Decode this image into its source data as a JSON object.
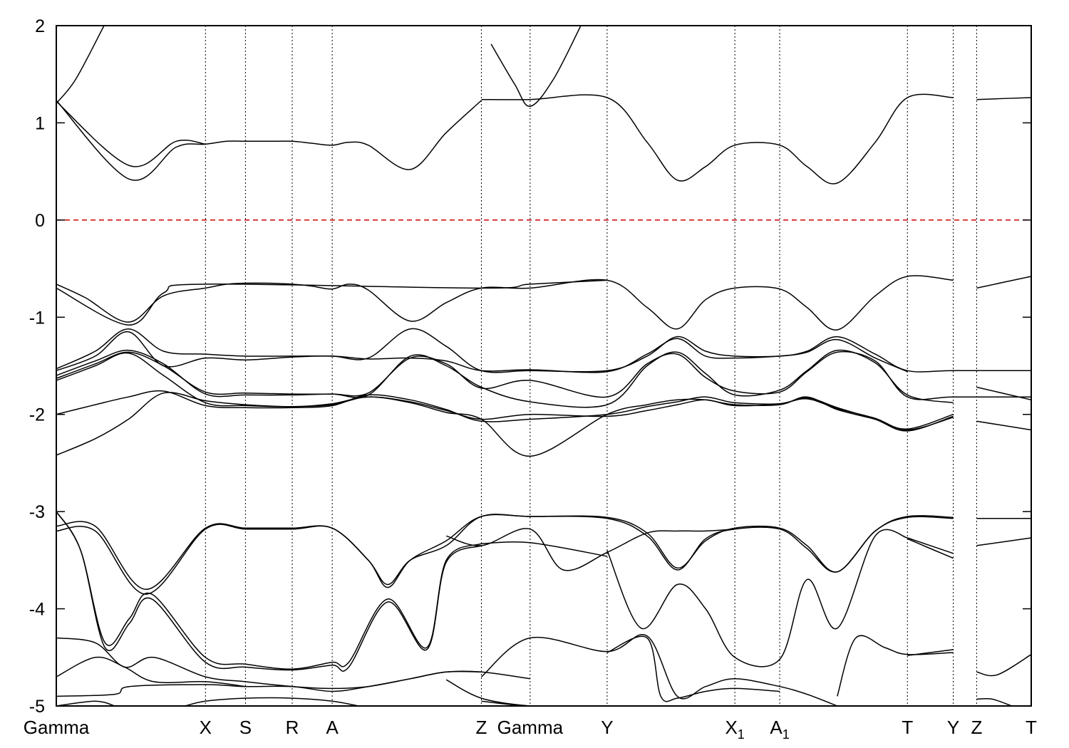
{
  "chart_data": {
    "type": "line",
    "title": "",
    "xlabel": "",
    "ylabel": "",
    "xlim": [
      0,
      1000
    ],
    "ylim": [
      -5,
      2
    ],
    "y_ticks": [
      "2",
      "1",
      "0",
      "-1",
      "-2",
      "-3",
      "-4",
      "-5"
    ],
    "grid": false,
    "fermi_level": {
      "y": 0,
      "color": "#d00000",
      "style": "dashed"
    },
    "kpoints": [
      {
        "label": "Gamma",
        "sub": "",
        "x": 0,
        "ha": "middle"
      },
      {
        "label": "X",
        "sub": "",
        "x": 153,
        "ha": "middle"
      },
      {
        "label": "S",
        "sub": "",
        "x": 194,
        "ha": "middle"
      },
      {
        "label": "R",
        "sub": "",
        "x": 242,
        "ha": "middle"
      },
      {
        "label": "A",
        "sub": "",
        "x": 283,
        "ha": "middle"
      },
      {
        "label": "Z",
        "sub": "",
        "x": 436,
        "ha": "end"
      },
      {
        "label": "Gamma",
        "sub": "",
        "x": 486,
        "ha": "middle"
      },
      {
        "label": "Y",
        "sub": "",
        "x": 565,
        "ha": "middle"
      },
      {
        "label": "X",
        "sub": "1",
        "x": 696,
        "ha": "middle"
      },
      {
        "label": "A",
        "sub": "1",
        "x": 742,
        "ha": "middle"
      },
      {
        "label": "T",
        "sub": "",
        "x": 873,
        "ha": "middle"
      },
      {
        "label": "Y",
        "sub": "",
        "x": 920,
        "ha": "middle"
      },
      {
        "label": "Z",
        "sub": "",
        "x": 944,
        "ha": "middle"
      },
      {
        "label": "T",
        "sub": "",
        "x": 1000,
        "ha": "middle"
      }
    ],
    "series": [
      {
        "x": [
          0,
          20,
          49
        ],
        "y": [
          1.2,
          1.45,
          2.0
        ]
      },
      {
        "x": [
          0,
          75,
          123,
          153,
          175,
          194,
          218,
          242,
          262,
          283,
          300,
          320,
          363,
          400,
          436
        ],
        "y": [
          1.23,
          0.42,
          0.75,
          0.78,
          0.81,
          0.81,
          0.81,
          0.81,
          0.79,
          0.77,
          0.8,
          0.77,
          0.52,
          0.9,
          1.23
        ]
      },
      {
        "x": [
          0,
          75,
          123,
          153
        ],
        "y": [
          1.22,
          0.56,
          0.81,
          0.78
        ]
      },
      {
        "x": [
          436,
          486,
          565,
          606,
          637,
          666,
          696,
          742,
          770,
          801,
          840,
          873,
          920
        ],
        "y": [
          1.24,
          1.24,
          1.26,
          0.8,
          0.41,
          0.55,
          0.77,
          0.77,
          0.55,
          0.38,
          0.8,
          1.26,
          1.26
        ]
      },
      {
        "x": [
          944,
          1000
        ],
        "y": [
          1.24,
          1.26
        ]
      },
      {
        "x": [
          446,
          470,
          486,
          510,
          538
        ],
        "y": [
          1.81,
          1.4,
          1.17,
          1.45,
          2.0
        ]
      },
      {
        "x": [
          0,
          30,
          74,
          110,
          153,
          175,
          194,
          218,
          242,
          262,
          283,
          300,
          320,
          363,
          400,
          436,
          486,
          565,
          606,
          637,
          666,
          696,
          742,
          770,
          801,
          840,
          873,
          920
        ],
        "y": [
          -0.66,
          -0.8,
          -1.05,
          -0.78,
          -0.7,
          -0.66,
          -0.65,
          -0.65,
          -0.66,
          -0.68,
          -0.71,
          -0.66,
          -0.72,
          -1.04,
          -0.85,
          -0.7,
          -0.7,
          -0.62,
          -0.9,
          -1.12,
          -0.82,
          -0.7,
          -0.71,
          -0.9,
          -1.13,
          -0.78,
          -0.58,
          -0.62
        ]
      },
      {
        "x": [
          0,
          74,
          110,
          153,
          436,
          486,
          565
        ],
        "y": [
          -0.7,
          -1.08,
          -0.75,
          -0.66,
          -0.7,
          -0.66,
          -0.62
        ]
      },
      {
        "x": [
          944,
          1000
        ],
        "y": [
          -0.7,
          -0.58
        ]
      },
      {
        "x": [
          0,
          40,
          74,
          110,
          153,
          194,
          242,
          283,
          320,
          363,
          400,
          436,
          486,
          565,
          606,
          637,
          666,
          696,
          742,
          770,
          801,
          840,
          873,
          920,
          1000
        ],
        "y": [
          -1.53,
          -1.35,
          -1.12,
          -1.35,
          -1.38,
          -1.4,
          -1.4,
          -1.4,
          -1.42,
          -1.12,
          -1.3,
          -1.55,
          -1.55,
          -1.55,
          -1.4,
          -1.2,
          -1.35,
          -1.4,
          -1.4,
          -1.35,
          -1.2,
          -1.38,
          -1.55,
          -1.55,
          -1.55
        ]
      },
      {
        "x": [
          0,
          40,
          74,
          110,
          153,
          194,
          242,
          283,
          320,
          363,
          400,
          436,
          486,
          565,
          606,
          637,
          666,
          696,
          742,
          770,
          801,
          840,
          873
        ],
        "y": [
          -1.55,
          -1.4,
          -1.15,
          -1.5,
          -1.42,
          -1.44,
          -1.41,
          -1.4,
          -1.43,
          -1.42,
          -1.45,
          -1.55,
          -1.54,
          -1.56,
          -1.38,
          -1.22,
          -1.4,
          -1.42,
          -1.4,
          -1.36,
          -1.23,
          -1.42,
          -1.56
        ]
      },
      {
        "x": [
          0,
          40,
          74,
          110,
          153,
          194,
          242,
          283,
          320,
          363,
          400,
          436,
          486,
          565,
          606,
          637,
          666,
          696,
          742,
          770,
          801,
          840,
          873,
          920,
          1000
        ],
        "y": [
          -1.63,
          -1.48,
          -1.36,
          -1.5,
          -1.77,
          -1.78,
          -1.79,
          -1.79,
          -1.78,
          -1.42,
          -1.48,
          -1.73,
          -1.65,
          -1.82,
          -1.48,
          -1.38,
          -1.62,
          -1.76,
          -1.77,
          -1.56,
          -1.36,
          -1.45,
          -1.82,
          -1.82,
          -1.82
        ]
      },
      {
        "x": [
          0,
          40,
          74,
          110,
          153,
          194,
          242,
          283,
          320,
          363,
          400,
          436,
          486,
          565,
          606,
          637,
          666,
          696,
          742,
          770,
          801,
          840,
          873,
          920
        ],
        "y": [
          -1.6,
          -1.45,
          -1.34,
          -1.48,
          -1.79,
          -1.8,
          -1.8,
          -1.79,
          -1.8,
          -1.4,
          -1.5,
          -1.72,
          -1.87,
          -1.9,
          -1.5,
          -1.36,
          -1.58,
          -1.8,
          -1.75,
          -1.55,
          -1.34,
          -1.47,
          -1.8,
          -1.88
        ]
      },
      {
        "x": [
          0,
          40,
          74,
          110,
          153,
          194,
          242,
          283,
          320,
          363,
          400,
          436,
          486,
          565,
          606,
          637,
          666,
          696,
          742,
          770,
          801,
          840,
          873,
          920
        ],
        "y": [
          -1.65,
          -1.5,
          -1.37,
          -1.6,
          -1.88,
          -1.91,
          -1.92,
          -1.9,
          -1.82,
          -1.88,
          -1.98,
          -2.05,
          -2.43,
          -2.0,
          -1.9,
          -1.85,
          -1.85,
          -1.9,
          -1.9,
          -1.82,
          -1.95,
          -2.05,
          -2.15,
          -2.0
        ]
      },
      {
        "x": [
          0,
          40,
          74,
          110,
          153,
          194,
          242,
          283,
          320,
          363,
          400,
          436,
          486,
          565,
          606,
          637,
          666,
          696,
          742,
          770,
          801,
          840,
          873,
          920
        ],
        "y": [
          -2.0,
          -1.9,
          -1.82,
          -1.76,
          -1.91,
          -1.93,
          -1.93,
          -1.91,
          -1.8,
          -1.85,
          -1.95,
          -2.07,
          -2.05,
          -2.0,
          -1.92,
          -1.87,
          -1.82,
          -1.88,
          -1.89,
          -1.83,
          -1.93,
          -2.05,
          -2.17,
          -2.02
        ]
      },
      {
        "x": [
          0,
          40,
          74,
          110,
          153,
          194,
          242,
          283,
          320,
          363,
          400,
          436,
          486,
          565,
          606,
          637,
          666,
          696,
          742,
          770,
          801,
          840,
          873,
          920
        ],
        "y": [
          -2.42,
          -2.25,
          -2.05,
          -1.78,
          -1.86,
          -1.9,
          -1.92,
          -1.89,
          -1.82,
          -1.87,
          -1.96,
          -2.05,
          -2.0,
          -2.02,
          -1.96,
          -1.9,
          -1.85,
          -1.91,
          -1.89,
          -1.84,
          -1.94,
          -2.04,
          -2.16,
          -2.03
        ]
      },
      {
        "x": [
          944,
          1000
        ],
        "y": [
          -1.72,
          -1.85
        ]
      },
      {
        "x": [
          944,
          1000
        ],
        "y": [
          -2.07,
          -2.16
        ]
      },
      {
        "x": [
          0,
          40,
          92,
          153,
          194,
          242,
          283,
          320,
          340,
          363,
          400,
          436,
          486,
          565,
          606,
          637,
          666,
          696,
          742,
          770,
          801,
          840,
          873,
          920
        ],
        "y": [
          -3.15,
          -3.15,
          -3.8,
          -3.17,
          -3.17,
          -3.17,
          -3.17,
          -3.5,
          -3.75,
          -3.5,
          -3.35,
          -3.05,
          -3.05,
          -3.06,
          -3.22,
          -3.58,
          -3.3,
          -3.17,
          -3.17,
          -3.35,
          -3.62,
          -3.2,
          -3.05,
          -3.06
        ]
      },
      {
        "x": [
          0,
          40,
          92,
          153,
          194,
          242,
          283,
          320,
          340,
          363,
          400,
          436,
          486,
          565,
          606,
          637,
          666,
          696,
          742,
          770,
          801,
          840,
          873,
          920
        ],
        "y": [
          -3.2,
          -3.2,
          -3.85,
          -3.18,
          -3.18,
          -3.18,
          -3.17,
          -3.5,
          -3.78,
          -3.5,
          -3.3,
          -3.05,
          -3.05,
          -3.07,
          -3.25,
          -3.6,
          -3.28,
          -3.18,
          -3.18,
          -3.38,
          -3.62,
          -3.2,
          -3.06,
          -3.07
        ]
      },
      {
        "x": [
          400,
          436,
          486,
          520,
          565,
          606,
          637,
          666,
          696
        ],
        "y": [
          -3.25,
          -3.35,
          -3.18,
          -3.6,
          -3.42,
          -3.22,
          -3.2,
          -3.2,
          -3.18
        ]
      },
      {
        "x": [
          436,
          486,
          565
        ],
        "y": [
          -3.33,
          -3.32,
          -3.46
        ]
      },
      {
        "x": [
          873,
          920
        ],
        "y": [
          -3.27,
          -3.43
        ]
      },
      {
        "x": [
          873,
          920
        ],
        "y": [
          -3.28,
          -3.48
        ]
      },
      {
        "x": [
          944,
          1000
        ],
        "y": [
          -3.35,
          -3.27
        ]
      },
      {
        "x": [
          944,
          1000
        ],
        "y": [
          -3.07,
          -3.07
        ]
      },
      {
        "x": [
          0,
          25,
          50,
          75,
          98,
          153,
          194,
          242,
          283,
          300,
          340,
          380,
          400,
          436
        ],
        "y": [
          -3.0,
          -3.4,
          -4.35,
          -4.1,
          -3.85,
          -4.5,
          -4.57,
          -4.62,
          -4.55,
          -4.55,
          -3.9,
          -4.4,
          -3.5,
          -3.33
        ]
      },
      {
        "x": [
          0,
          25,
          50,
          75,
          98,
          153,
          194,
          242,
          283,
          300,
          340,
          380,
          400,
          436
        ],
        "y": [
          -3.0,
          -3.4,
          -4.4,
          -4.15,
          -3.9,
          -4.55,
          -4.6,
          -4.63,
          -4.58,
          -4.6,
          -3.93,
          -4.42,
          -3.52,
          -3.35
        ]
      },
      {
        "x": [
          565,
          600,
          637,
          666,
          696,
          742,
          770,
          801,
          840,
          873
        ],
        "y": [
          -3.4,
          -4.2,
          -3.75,
          -4.0,
          -4.5,
          -4.52,
          -3.7,
          -4.2,
          -3.25,
          -3.27
        ]
      },
      {
        "x": [
          0,
          40,
          70,
          100,
          153,
          194,
          242,
          283,
          320,
          363,
          400,
          436
        ],
        "y": [
          -4.3,
          -4.35,
          -4.6,
          -4.5,
          -4.7,
          -4.75,
          -4.8,
          -4.82,
          -4.8,
          -4.72,
          -4.65,
          -4.65
        ]
      },
      {
        "x": [
          0,
          40,
          70,
          100,
          153,
          194
        ],
        "y": [
          -4.7,
          -4.5,
          -4.6,
          -4.75,
          -4.75,
          -4.8
        ]
      },
      {
        "x": [
          436,
          486,
          565,
          606,
          637,
          666,
          696,
          742,
          770,
          801
        ],
        "y": [
          -4.7,
          -4.3,
          -4.44,
          -4.28,
          -4.9,
          -4.8,
          -4.72,
          -4.8,
          -4.88,
          -5.0
        ]
      },
      {
        "x": [
          565,
          606,
          620,
          637,
          666,
          696,
          742
        ],
        "y": [
          -4.45,
          -4.3,
          -4.9,
          -4.92,
          -4.85,
          -4.82,
          -4.85
        ]
      },
      {
        "x": [
          801,
          820,
          850,
          873,
          920
        ],
        "y": [
          -4.9,
          -4.3,
          -4.4,
          -4.47,
          -4.45
        ]
      },
      {
        "x": [
          873,
          920
        ],
        "y": [
          -4.48,
          -4.42
        ]
      },
      {
        "x": [
          944,
          965,
          1000
        ],
        "y": [
          -4.65,
          -4.68,
          -4.47
        ]
      },
      {
        "x": [
          0,
          60,
          75,
          153,
          194,
          242,
          283,
          320,
          363,
          400,
          436,
          486
        ],
        "y": [
          -4.9,
          -4.88,
          -4.8,
          -4.78,
          -4.8,
          -4.8,
          -4.85,
          -4.8,
          -4.72,
          -4.65,
          -4.65,
          -4.72
        ]
      },
      {
        "x": [
          400,
          436,
          486,
          530
        ],
        "y": [
          -4.73,
          -4.92,
          -5.0,
          -5.0
        ]
      },
      {
        "x": [
          436,
          486,
          565
        ],
        "y": [
          -4.95,
          -5.0,
          -5.0
        ]
      },
      {
        "x": [
          132,
          153,
          194,
          242,
          283,
          310
        ],
        "y": [
          -5.0,
          -4.95,
          -4.92,
          -4.92,
          -4.95,
          -5.0
        ]
      },
      {
        "x": [
          944,
          960,
          980
        ],
        "y": [
          -4.93,
          -4.93,
          -5.0
        ]
      },
      {
        "x": [
          0,
          40,
          60
        ],
        "y": [
          -5.0,
          -4.95,
          -5.0
        ]
      }
    ]
  }
}
